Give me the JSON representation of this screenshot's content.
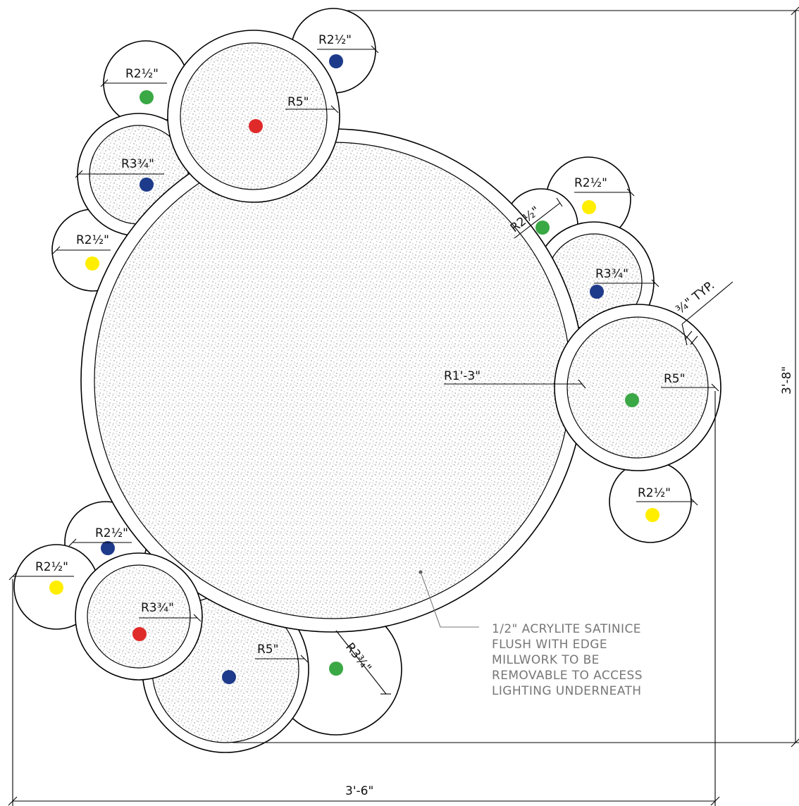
{
  "labels": {
    "main_radius": "R1'-3\"",
    "r5": "R5\"",
    "r3_3_4": "R3¾\"",
    "r2_1_2": "R2½\"",
    "typ": "¾\" TYP."
  },
  "dimensions": {
    "width": "3'-6\"",
    "height": "3'-8\""
  },
  "note": {
    "line1": "1/2\" ACRYLITE SATINICE",
    "line2": "FLUSH WITH EDGE",
    "line3": "MILLWORK TO BE",
    "line4": "REMOVABLE TO ACCESS",
    "line5": "LIGHTING UNDERNEATH"
  },
  "colors": {
    "red": "#e02a2a",
    "blue": "#1e3a8a",
    "green": "#3aa845",
    "yellow": "#ffee00"
  }
}
